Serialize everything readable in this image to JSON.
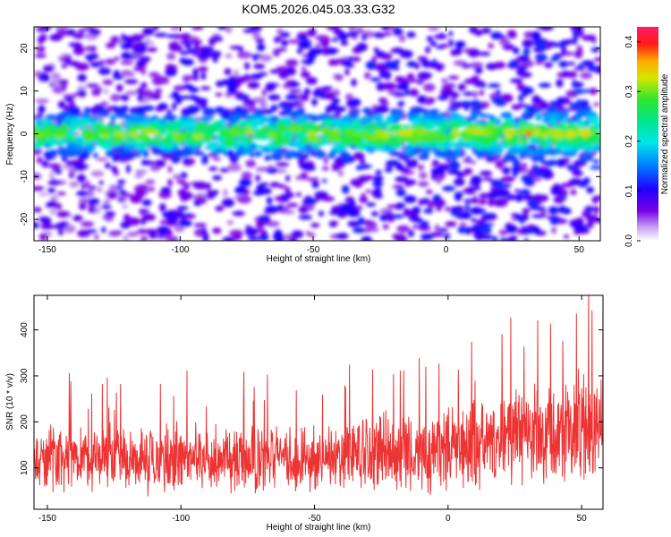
{
  "title": "KOM5.2026.045.03.33.G32",
  "chart_data": [
    {
      "type": "heatmap",
      "xlabel": "Height of straight line (km)",
      "ylabel": "Frequency (Hz)",
      "xlim": [
        -155,
        58
      ],
      "ylim": [
        -25,
        25
      ],
      "xticks": [
        -150,
        -100,
        -50,
        0,
        50
      ],
      "yticks": [
        -20,
        -10,
        0,
        10,
        20
      ],
      "colorbar": {
        "label": "Normalized spectral amplitude",
        "range": [
          0.0,
          0.43
        ],
        "ticks": [
          0.0,
          0.1,
          0.2,
          0.3,
          0.4
        ],
        "colormap": "rainbow (white → violet → blue → cyan → green → yellow → red → magenta)"
      },
      "band": {
        "center_hz": 0,
        "half_width_hz": 5,
        "peak_x_km": 31,
        "peak_amplitude": 0.43
      }
    },
    {
      "type": "line",
      "xlabel": "Height of straight line (km)",
      "ylabel": "SNR (10 * v/v)",
      "xlim": [
        -155,
        58
      ],
      "ylim": [
        10,
        475
      ],
      "xticks": [
        -150,
        -100,
        -50,
        0,
        50
      ],
      "yticks": [
        100,
        200,
        300,
        400
      ],
      "color": "#ee3333",
      "trend": {
        "x": [
          -155,
          -50,
          0,
          30,
          58
        ],
        "mean": [
          120,
          120,
          140,
          175,
          190
        ],
        "spread": [
          65,
          65,
          80,
          95,
          110
        ]
      },
      "max": 475
    }
  ]
}
